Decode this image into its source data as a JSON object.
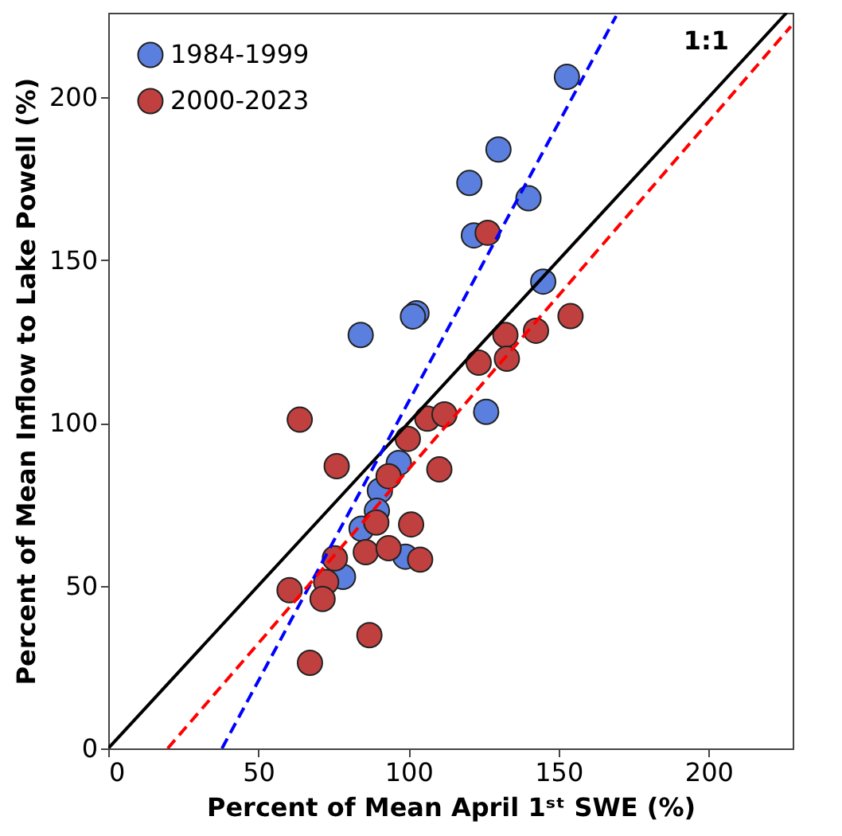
{
  "chart_data": {
    "type": "scatter",
    "xlabel": "Percent of Mean April 1ˢᵗ SWE (%)",
    "ylabel": "Percent of Mean Inflow to Lake Powell (%)",
    "xlim": [
      0,
      228
    ],
    "ylim": [
      0,
      226
    ],
    "xticks": [
      0,
      50,
      100,
      150,
      200
    ],
    "yticks": [
      0,
      50,
      100,
      150,
      200
    ],
    "grid": false,
    "legend": "top left",
    "marker": "circle",
    "annotations": [
      "1:1"
    ],
    "series": [
      {
        "name": "1984-1999",
        "color": "#5b7fde",
        "x": [
          152.8,
          130,
          120.3,
          140,
          121.8,
          144.9,
          84.1,
          102.7,
          101.5,
          125.9,
          96.8,
          90.5,
          89.5,
          84.4,
          99,
          78.2
        ],
        "values": [
          206.3,
          184,
          173.7,
          169,
          157.6,
          143.4,
          127,
          133.7,
          132.7,
          103.4,
          87.7,
          79.2,
          73,
          67.5,
          58.9,
          52.7
        ]
      },
      {
        "name": "2000-2023",
        "color": "#c0403f",
        "x": [
          126.4,
          123.4,
          132.3,
          132.8,
          142.5,
          154,
          63.8,
          76.1,
          106.3,
          112,
          99.8,
          110.3,
          93.4,
          89.3,
          100.9,
          85.8,
          93.4,
          103.9,
          75.5,
          72.6,
          71.4,
          60.4,
          87,
          67.2
        ],
        "values": [
          158.4,
          118.5,
          127,
          119.7,
          128.3,
          132.8,
          101,
          86.7,
          101.3,
          102.6,
          95.1,
          85.7,
          83.6,
          69.4,
          68.8,
          60.3,
          61.5,
          58,
          58.4,
          51.1,
          45.9,
          48.6,
          34.8,
          26.3
        ]
      },
      {
        "type": "line",
        "color": "#000000",
        "line_style": "solid",
        "marker": "none",
        "x": [
          0,
          226
        ],
        "values": [
          0,
          226
        ]
      },
      {
        "type": "line",
        "color": "#0000ff",
        "line_style": "dashed",
        "marker": "none",
        "x": [
          37.9,
          169.2
        ],
        "values": [
          0,
          225
        ]
      },
      {
        "type": "line",
        "color": "#ff0000",
        "line_style": "dashed",
        "marker": "none",
        "x": [
          19.8,
          227.4
        ],
        "values": [
          0,
          221.8
        ]
      }
    ]
  }
}
